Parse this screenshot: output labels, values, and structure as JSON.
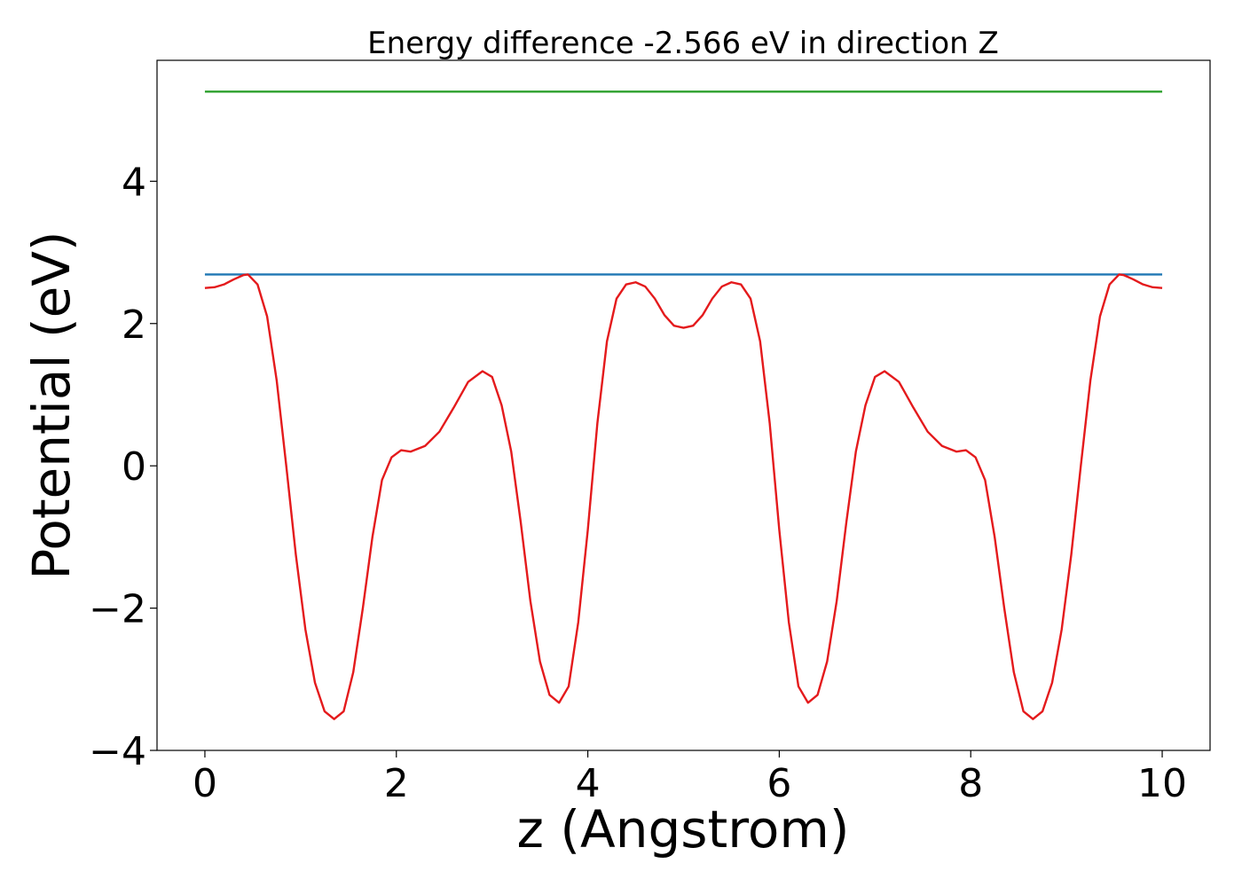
{
  "chart_data": {
    "type": "line",
    "title": "Energy difference -2.566 eV in direction Z",
    "xlabel": "z (Angstrom)",
    "ylabel": "Potential (eV)",
    "xlim": [
      -0.5,
      10.5
    ],
    "ylim": [
      -4.0,
      5.7
    ],
    "xticks": [
      0,
      2,
      4,
      6,
      8,
      10
    ],
    "xtick_labels": [
      "0",
      "2",
      "4",
      "6",
      "8",
      "10"
    ],
    "yticks": [
      -4,
      -2,
      0,
      2,
      4
    ],
    "ytick_labels": [
      "−4",
      "−2",
      "0",
      "2",
      "4"
    ],
    "grid": false,
    "series": [
      {
        "color": "#2ca02c",
        "x": [
          0,
          10
        ],
        "y": [
          5.26,
          5.26
        ]
      },
      {
        "color": "#1f77b4",
        "x": [
          0,
          10
        ],
        "y": [
          2.69,
          2.69
        ]
      },
      {
        "color": "#e41a1c",
        "x": [
          0.0,
          0.1,
          0.2,
          0.3,
          0.4,
          0.45,
          0.55,
          0.65,
          0.75,
          0.85,
          0.95,
          1.05,
          1.15,
          1.25,
          1.35,
          1.45,
          1.55,
          1.65,
          1.75,
          1.85,
          1.95,
          2.05,
          2.15,
          2.3,
          2.45,
          2.6,
          2.75,
          2.9,
          3.0,
          3.1,
          3.2,
          3.3,
          3.4,
          3.5,
          3.6,
          3.7,
          3.8,
          3.9,
          4.0,
          4.1,
          4.2,
          4.3,
          4.4,
          4.5,
          4.6,
          4.7,
          4.8,
          4.9,
          5.0,
          5.1,
          5.2,
          5.3,
          5.4,
          5.5,
          5.6,
          5.7,
          5.8,
          5.9,
          6.0,
          6.1,
          6.2,
          6.3,
          6.4,
          6.5,
          6.6,
          6.7,
          6.8,
          6.9,
          7.0,
          7.1,
          7.25,
          7.4,
          7.55,
          7.7,
          7.85,
          7.95,
          8.05,
          8.15,
          8.25,
          8.35,
          8.45,
          8.55,
          8.65,
          8.75,
          8.85,
          8.95,
          9.05,
          9.15,
          9.25,
          9.35,
          9.45,
          9.55,
          9.6,
          9.7,
          9.8,
          9.9,
          10.0
        ],
        "y": [
          2.5,
          2.51,
          2.55,
          2.62,
          2.68,
          2.69,
          2.55,
          2.1,
          1.2,
          0.0,
          -1.25,
          -2.3,
          -3.05,
          -3.45,
          -3.56,
          -3.45,
          -2.9,
          -2.0,
          -1.0,
          -0.2,
          0.12,
          0.22,
          0.2,
          0.28,
          0.48,
          0.82,
          1.18,
          1.33,
          1.25,
          0.85,
          0.2,
          -0.8,
          -1.9,
          -2.75,
          -3.22,
          -3.33,
          -3.1,
          -2.2,
          -0.9,
          0.6,
          1.75,
          2.35,
          2.55,
          2.58,
          2.52,
          2.35,
          2.12,
          1.97,
          1.94,
          1.97,
          2.12,
          2.35,
          2.52,
          2.58,
          2.55,
          2.35,
          1.75,
          0.6,
          -0.9,
          -2.2,
          -3.1,
          -3.33,
          -3.22,
          -2.75,
          -1.9,
          -0.8,
          0.2,
          0.85,
          1.25,
          1.33,
          1.18,
          0.82,
          0.48,
          0.28,
          0.2,
          0.22,
          0.12,
          -0.2,
          -1.0,
          -2.0,
          -2.9,
          -3.45,
          -3.56,
          -3.45,
          -3.05,
          -2.3,
          -1.25,
          0.0,
          1.2,
          2.1,
          2.55,
          2.69,
          2.68,
          2.62,
          2.55,
          2.51,
          2.5
        ]
      }
    ]
  }
}
